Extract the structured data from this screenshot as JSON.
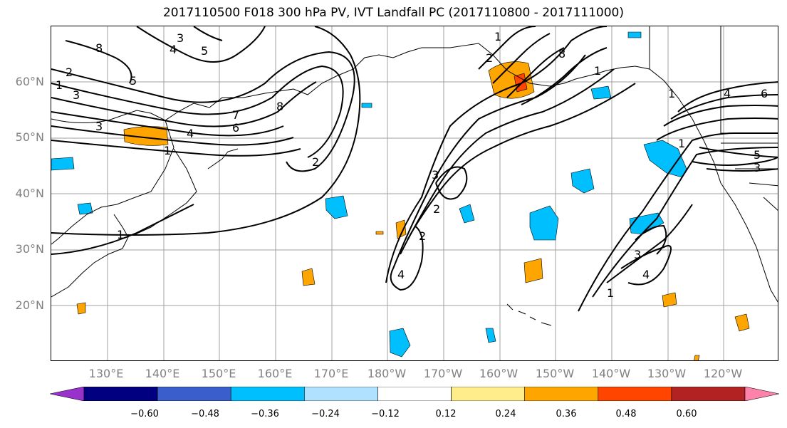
{
  "title": "2017110500 F018 300 hPa PV, IVT Landfall PC (2017110800 - 2017111000)",
  "lat_labels": [
    "60°N",
    "50°N",
    "40°N",
    "30°N",
    "20°N"
  ],
  "lon_labels": [
    "130°E",
    "140°E",
    "150°E",
    "160°E",
    "170°E",
    "180°W",
    "170°W",
    "160°W",
    "150°W",
    "140°W",
    "130°W",
    "120°W"
  ],
  "contour_labels": [
    "8",
    "3",
    "4",
    "5",
    "1",
    "2",
    "5",
    "3",
    "3",
    "1",
    "4",
    "6",
    "7",
    "8",
    "2",
    "3",
    "2",
    "1",
    "4",
    "2",
    "1",
    "8",
    "1",
    "2",
    "1",
    "4",
    "6",
    "5",
    "3",
    "1",
    "3",
    "4",
    "1"
  ],
  "colorbar": {
    "ticks": [
      "−0.60",
      "−0.48",
      "−0.36",
      "−0.24",
      "−0.12",
      "0.12",
      "0.24",
      "0.36",
      "0.48",
      "0.60"
    ],
    "colors": [
      "#9932cc",
      "#000080",
      "#3a5fcd",
      "#00bfff",
      "#b0e2ff",
      "#ffffff",
      "#ffec8b",
      "#ffa500",
      "#ff4500",
      "#b22222",
      "#ff82ab"
    ]
  },
  "map_colors": {
    "grid": "#a0a0a0",
    "coast": "#000000",
    "contour": "#000000"
  }
}
